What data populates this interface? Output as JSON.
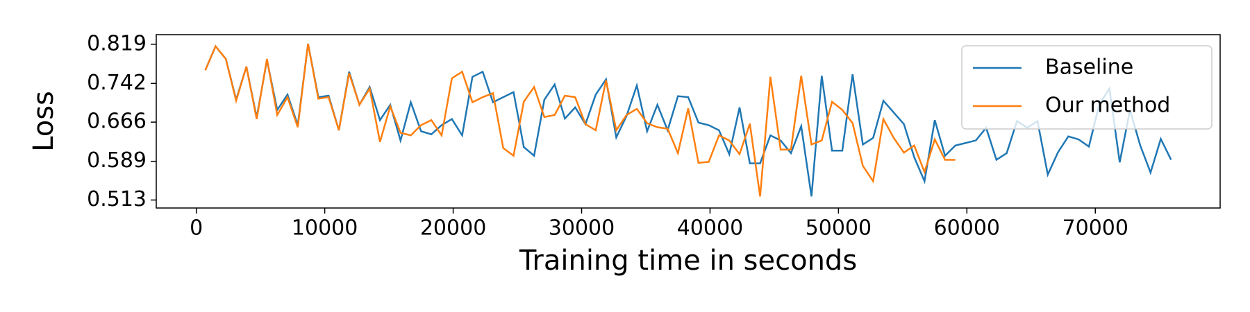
{
  "chart_data": {
    "type": "line",
    "xlabel": "Training time in seconds",
    "ylabel": "Loss",
    "xlim": [
      -3120,
      79720
    ],
    "ylim": [
      0.4973,
      0.8378
    ],
    "xticks": [
      0,
      10000,
      20000,
      30000,
      40000,
      50000,
      60000,
      70000
    ],
    "yticks": [
      0.513,
      0.589,
      0.666,
      0.742,
      0.819
    ],
    "legend": "upper right",
    "series": [
      {
        "name": "Baseline",
        "color": "#1f77b4",
        "x": [
          700,
          1500,
          2300,
          3100,
          3900,
          4700,
          5500,
          6300,
          7100,
          7900,
          8700,
          9500,
          10300,
          11100,
          11900,
          12700,
          13500,
          14300,
          15100,
          15900,
          16700,
          17500,
          18300,
          19100,
          19900,
          20700,
          21500,
          22300,
          23100,
          23900,
          24700,
          25500,
          26300,
          27100,
          27900,
          28700,
          29500,
          30300,
          31100,
          31900,
          32700,
          33500,
          34300,
          35100,
          35900,
          36700,
          37500,
          38300,
          39100,
          39900,
          40700,
          41500,
          42300,
          43100,
          43900,
          44700,
          45500,
          46300,
          47100,
          47900,
          48700,
          49500,
          50300,
          51100,
          51900,
          52700,
          53500,
          54300,
          55100,
          55900,
          56700,
          57500,
          58300,
          59100,
          59900,
          60700,
          61500,
          62300,
          63100,
          63900,
          64700,
          65500,
          66300,
          67100,
          67900,
          68700,
          69500,
          70300,
          71100,
          71900,
          72700,
          73500,
          74300,
          75100,
          75900
        ],
        "values": [
          0.768,
          0.815,
          0.79,
          0.71,
          0.775,
          0.675,
          0.788,
          0.69,
          0.72,
          0.66,
          0.82,
          0.715,
          0.718,
          0.65,
          0.765,
          0.7,
          0.735,
          0.67,
          0.7,
          0.63,
          0.705,
          0.648,
          0.642,
          0.66,
          0.672,
          0.64,
          0.755,
          0.765,
          0.705,
          0.715,
          0.725,
          0.617,
          0.6,
          0.71,
          0.74,
          0.673,
          0.695,
          0.662,
          0.72,
          0.75,
          0.636,
          0.678,
          0.738,
          0.648,
          0.7,
          0.65,
          0.717,
          0.715,
          0.665,
          0.66,
          0.65,
          0.603,
          0.695,
          0.585,
          0.585,
          0.64,
          0.63,
          0.605,
          0.658,
          0.52,
          0.757,
          0.61,
          0.61,
          0.76,
          0.622,
          0.635,
          0.708,
          0.685,
          0.662,
          0.597,
          0.55,
          0.67,
          0.6,
          0.62,
          0.625,
          0.63,
          0.655,
          0.592,
          0.605,
          0.668,
          0.655,
          0.668,
          0.563,
          0.607,
          0.638,
          0.632,
          0.618,
          0.7,
          0.732,
          0.587,
          0.69,
          0.62,
          0.567,
          0.633,
          0.592
        ]
      },
      {
        "name": "Our method",
        "color": "#ff7f0e",
        "x": [
          700,
          1500,
          2300,
          3100,
          3900,
          4700,
          5500,
          6300,
          7100,
          7900,
          8700,
          9500,
          10300,
          11100,
          11900,
          12700,
          13500,
          14300,
          15100,
          15900,
          16700,
          17500,
          18300,
          19100,
          19900,
          20700,
          21500,
          22300,
          23100,
          23900,
          24700,
          25500,
          26300,
          27100,
          27900,
          28700,
          29500,
          30300,
          31100,
          31900,
          32700,
          33500,
          34300,
          35100,
          35900,
          36700,
          37500,
          38300,
          39100,
          39900,
          40700,
          41500,
          42300,
          43100,
          43900,
          44700,
          45500,
          46300,
          47100,
          47900,
          48700,
          49500,
          50300,
          51100,
          51900,
          52700,
          53500,
          54300,
          55100,
          55900,
          56700,
          57500,
          58300,
          59100
        ],
        "values": [
          0.768,
          0.815,
          0.79,
          0.708,
          0.775,
          0.672,
          0.79,
          0.68,
          0.715,
          0.656,
          0.82,
          0.712,
          0.715,
          0.65,
          0.762,
          0.7,
          0.732,
          0.627,
          0.697,
          0.645,
          0.64,
          0.66,
          0.67,
          0.64,
          0.752,
          0.765,
          0.705,
          0.715,
          0.723,
          0.615,
          0.6,
          0.706,
          0.735,
          0.676,
          0.68,
          0.718,
          0.715,
          0.662,
          0.65,
          0.748,
          0.65,
          0.68,
          0.692,
          0.664,
          0.656,
          0.653,
          0.605,
          0.693,
          0.586,
          0.588,
          0.64,
          0.63,
          0.603,
          0.663,
          0.52,
          0.755,
          0.612,
          0.612,
          0.757,
          0.622,
          0.63,
          0.706,
          0.69,
          0.664,
          0.58,
          0.55,
          0.672,
          0.635,
          0.606,
          0.62,
          0.568,
          0.632,
          0.592,
          0.592
        ]
      }
    ]
  }
}
